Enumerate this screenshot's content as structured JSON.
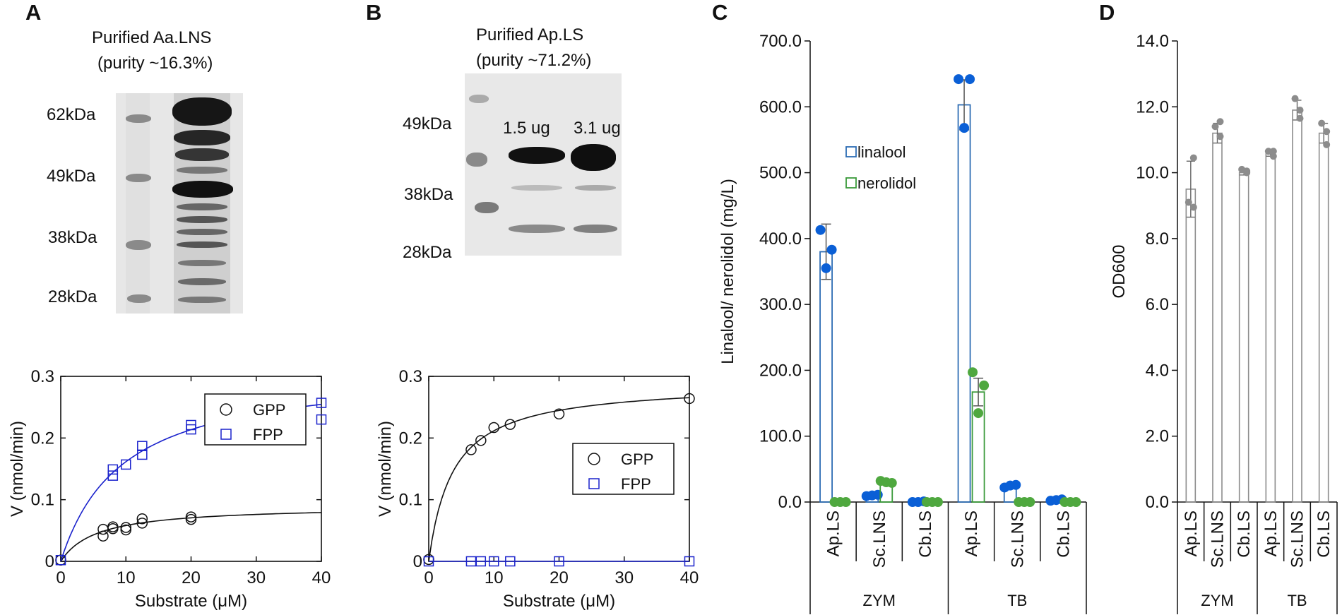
{
  "panel_letters": [
    "A",
    "B",
    "C",
    "D"
  ],
  "gel_a": {
    "title": "Purified Aa.LNS",
    "subtitle": "(purity ~16.3%)",
    "markers": [
      "62kDa",
      "49kDa",
      "38kDa",
      "28kDa"
    ]
  },
  "gel_b": {
    "title": "Purified Ap.LS",
    "subtitle": "(purity ~71.2%)",
    "markers": [
      "49kDa",
      "38kDa",
      "28kDa"
    ],
    "lane_labels": [
      "1.5 ug",
      "3.1 ug"
    ]
  },
  "colors": {
    "gpp": "#111111",
    "fpp": "#1a22cc",
    "linalool": "#2e6db4",
    "linalool_dot": "#0a5fd6",
    "nerolidol": "#3a9a3a",
    "nerolidol_dot": "#4fa83f",
    "od_bar": "#8c8c8c",
    "od_dot": "#8c8c8c"
  },
  "chart_data": [
    {
      "panel": "A",
      "type": "scatter",
      "xlabel": "Substrate (μM)",
      "ylabel": "V (nmol/min)",
      "xlim": [
        0,
        40
      ],
      "ylim": [
        0,
        0.3
      ],
      "xticks": [
        "0",
        "10",
        "20",
        "30",
        "40"
      ],
      "yticks": [
        "0",
        "0.1",
        "0.2",
        "0.3"
      ],
      "legend_position": "top-right",
      "series": [
        {
          "name": "GPP",
          "marker": "circle",
          "x": [
            0,
            6.5,
            6.5,
            8,
            8,
            10,
            10,
            12.5,
            12.5,
            20,
            20
          ],
          "y": [
            0.002,
            0.041,
            0.052,
            0.053,
            0.056,
            0.051,
            0.055,
            0.062,
            0.069,
            0.068,
            0.072
          ],
          "fit": {
            "vmax": 0.09,
            "km": 5.5
          }
        },
        {
          "name": "FPP",
          "marker": "square",
          "x": [
            0,
            8,
            8,
            10,
            12.5,
            12.5,
            20,
            20,
            40,
            40
          ],
          "y": [
            0.002,
            0.139,
            0.149,
            0.157,
            0.173,
            0.187,
            0.214,
            0.221,
            0.23,
            0.257
          ],
          "fit": {
            "vmax": 0.315,
            "km": 9.5
          }
        }
      ]
    },
    {
      "panel": "B",
      "type": "scatter",
      "xlabel": "Substrate (μM)",
      "ylabel": "V (nmol/min)",
      "xlim": [
        0,
        40
      ],
      "ylim": [
        0,
        0.3
      ],
      "xticks": [
        "0",
        "10",
        "20",
        "30",
        "40"
      ],
      "yticks": [
        "0",
        "0.1",
        "0.2",
        "0.3"
      ],
      "legend_position": "bottom-right",
      "series": [
        {
          "name": "GPP",
          "marker": "circle",
          "x": [
            0,
            6.5,
            8,
            10,
            12.5,
            20,
            40
          ],
          "y": [
            0.003,
            0.181,
            0.196,
            0.217,
            0.222,
            0.239,
            0.264
          ],
          "fit": {
            "vmax": 0.29,
            "km": 3.7
          }
        },
        {
          "name": "FPP",
          "marker": "square",
          "x": [
            0,
            6.5,
            8,
            10,
            12.5,
            20,
            40
          ],
          "y": [
            0,
            0,
            0,
            0,
            0,
            0,
            0
          ],
          "fit": {
            "vmax": 0,
            "km": 1
          }
        }
      ]
    },
    {
      "panel": "C",
      "type": "bar",
      "ylabel": "Linalool/ nerolidol (mg/L)",
      "ylim": [
        0,
        700
      ],
      "yticks": [
        "0.0",
        "100.0",
        "200.0",
        "300.0",
        "400.0",
        "500.0",
        "600.0",
        "700.0"
      ],
      "categories": [
        "Ap.LS",
        "Sc.LNS",
        "Cb.LS",
        "Ap.LS",
        "Sc.LNS",
        "Cb.LS"
      ],
      "groups": [
        "ZYM",
        "TB"
      ],
      "legend_position": "top-center",
      "series": [
        {
          "name": "linalool",
          "values": [
            380,
            10,
            1,
            603,
            24,
            3
          ],
          "errors": [
            42,
            0,
            0,
            38,
            0,
            0
          ],
          "points": [
            [
              413,
              355,
              383
            ],
            [
              9,
              10,
              11
            ],
            [
              0,
              0,
              1
            ],
            [
              642,
              568,
              642
            ],
            [
              22,
              25,
              26
            ],
            [
              2,
              3,
              4
            ]
          ]
        },
        {
          "name": "nerolidol",
          "values": [
            0,
            30,
            0,
            167,
            0,
            0
          ],
          "errors": [
            0,
            0,
            0,
            21,
            0,
            0
          ],
          "points": [
            [
              0,
              0,
              0
            ],
            [
              32,
              30,
              29
            ],
            [
              0,
              0,
              0
            ],
            [
              197,
              135,
              177
            ],
            [
              0,
              0,
              0
            ],
            [
              0,
              0,
              0
            ]
          ]
        }
      ]
    },
    {
      "panel": "D",
      "type": "bar",
      "ylabel": "OD600",
      "ylim": [
        0,
        14
      ],
      "yticks": [
        "0.0",
        "2.0",
        "4.0",
        "6.0",
        "8.0",
        "10.0",
        "12.0",
        "14.0"
      ],
      "categories": [
        "Ap.LS",
        "Sc.LNS",
        "Cb.LS",
        "Ap.LS",
        "Sc.LNS",
        "Cb.LS"
      ],
      "groups": [
        "ZYM",
        "TB"
      ],
      "series": [
        {
          "values": [
            9.5,
            11.2,
            10.0,
            10.6,
            11.9,
            11.2
          ],
          "errors": [
            0.85,
            0.3,
            0.07,
            0.1,
            0.3,
            0.3
          ],
          "points": [
            [
              10.45,
              9.1,
              8.95
            ],
            [
              11.1,
              11.4,
              11.55
            ],
            [
              10.05,
              10.1,
              10.0
            ],
            [
              10.5,
              10.65,
              10.65
            ],
            [
              11.65,
              12.25,
              11.9
            ],
            [
              10.85,
              11.5,
              11.25
            ]
          ]
        }
      ]
    }
  ]
}
